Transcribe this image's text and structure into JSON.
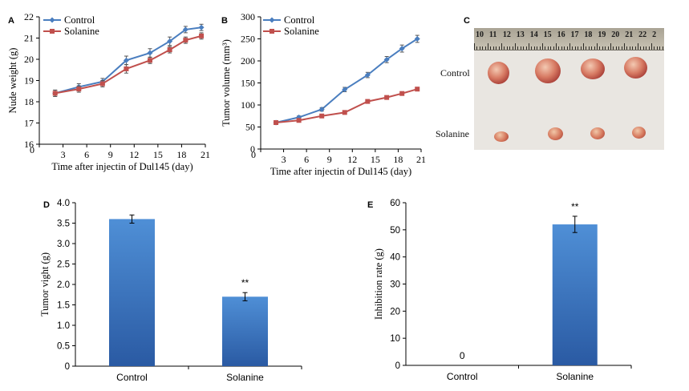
{
  "panels": {
    "a": "A",
    "b": "B",
    "c": "C",
    "d": "D",
    "e": "E"
  },
  "photo": {
    "row_labels": [
      "Control",
      "Solanine"
    ],
    "ruler_numbers": [
      "10",
      "11",
      "12",
      "13",
      "14",
      "15",
      "16",
      "17",
      "18",
      "19",
      "20",
      "21",
      "22",
      "2"
    ]
  },
  "colors": {
    "control": "#4a7ebf",
    "solanine": "#c0504d",
    "bar_top": "#4f8fd6",
    "bar_bottom": "#2a5aa3"
  },
  "chart_data": [
    {
      "panel": "A",
      "type": "line",
      "xlabel": "Time after injectin of Dul145 (day)",
      "ylabel": "Nude weight (g)",
      "xlim": [
        0,
        21
      ],
      "ylim": [
        16,
        22
      ],
      "xticks": [
        0,
        3,
        6,
        9,
        12,
        15,
        18,
        21
      ],
      "yticks": [
        16,
        17,
        18,
        19,
        20,
        21,
        22
      ],
      "x": [
        2,
        5,
        8,
        11,
        14,
        16.5,
        18.5,
        20.5
      ],
      "series": [
        {
          "name": "Control",
          "values": [
            18.4,
            18.7,
            18.95,
            19.95,
            20.3,
            20.85,
            21.4,
            21.5
          ],
          "errors": [
            0.15,
            0.15,
            0.15,
            0.2,
            0.2,
            0.2,
            0.15,
            0.15
          ]
        },
        {
          "name": "Solanine",
          "values": [
            18.4,
            18.6,
            18.85,
            19.55,
            19.95,
            20.45,
            20.9,
            21.1
          ],
          "errors": [
            0.15,
            0.15,
            0.15,
            0.2,
            0.15,
            0.15,
            0.15,
            0.15
          ]
        }
      ],
      "legend": "top-left"
    },
    {
      "panel": "B",
      "type": "line",
      "xlabel": "Time after injectin of Dul145 (day)",
      "ylabel": "Tumor volume (mm³)",
      "xlim": [
        0,
        21
      ],
      "ylim": [
        0,
        300
      ],
      "xticks": [
        0,
        3,
        6,
        9,
        12,
        15,
        18,
        21
      ],
      "yticks": [
        0,
        50,
        100,
        150,
        200,
        250,
        300
      ],
      "x": [
        2,
        5,
        8,
        11,
        14,
        16.5,
        18.5,
        20.5
      ],
      "series": [
        {
          "name": "Control",
          "values": [
            60,
            72,
            90,
            135,
            168,
            203,
            228,
            250
          ],
          "errors": [
            3,
            3,
            4,
            5,
            6,
            7,
            8,
            8
          ]
        },
        {
          "name": "Solanine",
          "values": [
            60,
            65,
            75,
            83,
            108,
            117,
            126,
            136
          ],
          "errors": [
            2,
            2,
            2,
            3,
            3,
            3,
            3,
            3
          ]
        }
      ],
      "legend": "top-left"
    },
    {
      "panel": "D",
      "type": "bar",
      "ylabel": "Tumor vight (g)",
      "categories": [
        "Control",
        "Solanine"
      ],
      "values": [
        3.6,
        1.7
      ],
      "errors": [
        0.1,
        0.1
      ],
      "annotations": [
        "",
        "**"
      ],
      "ylim": [
        0,
        4.0
      ],
      "yticks": [
        "0",
        "0.5",
        "1.0",
        "1.5",
        "2.0",
        "2.5",
        "3.0",
        "3.5",
        "4.0"
      ]
    },
    {
      "panel": "E",
      "type": "bar",
      "ylabel": "Inhibition rate (g)",
      "categories": [
        "Control",
        "Solanine"
      ],
      "values": [
        0,
        52
      ],
      "errors": [
        0,
        3
      ],
      "annotations": [
        "0",
        "**"
      ],
      "ylim": [
        0,
        60
      ],
      "yticks": [
        "0",
        "10",
        "20",
        "30",
        "40",
        "50",
        "60"
      ]
    }
  ]
}
